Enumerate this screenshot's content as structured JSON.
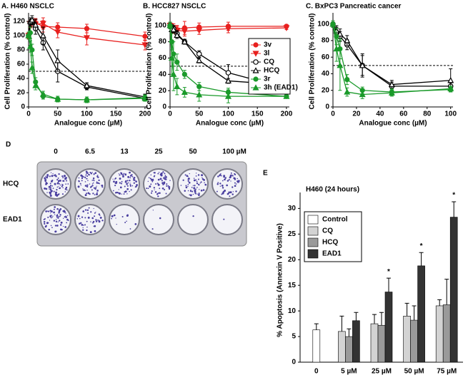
{
  "chart_data": [
    {
      "type": "line",
      "title": "A. H460 NSCLC",
      "x_label": "Analogue conc (µM)",
      "y_label": "Cell Proliferation (% control)",
      "x": [
        0,
        3,
        6,
        12,
        25,
        50,
        100,
        200
      ],
      "xlim": [
        0,
        205
      ],
      "xticks": [
        0,
        50,
        100,
        150,
        200
      ],
      "ylim": [
        0,
        128
      ],
      "yticks": [
        0,
        20,
        40,
        60,
        80,
        100,
        120
      ],
      "reference_line": 50,
      "series": [
        {
          "name": "3v",
          "color": "#e8201f",
          "marker": "circle-filled",
          "values": [
            100,
            118,
            120,
            118,
            113,
            112,
            110,
            99
          ],
          "errors": [
            4,
            5,
            5,
            6,
            8,
            6,
            6,
            6
          ]
        },
        {
          "name": "3l",
          "color": "#e8201f",
          "marker": "triangle-down",
          "values": [
            100,
            116,
            118,
            116,
            117,
            105,
            97,
            87
          ],
          "errors": [
            4,
            5,
            5,
            6,
            8,
            8,
            10,
            7
          ]
        },
        {
          "name": "CQ",
          "color": "#000000",
          "marker": "circle-open",
          "values": [
            100,
            118,
            120,
            110,
            90,
            50,
            28,
            12
          ],
          "errors": [
            5,
            5,
            5,
            8,
            10,
            15,
            4,
            4
          ]
        },
        {
          "name": "HCQ",
          "color": "#000000",
          "marker": "triangle-open",
          "values": [
            100,
            120,
            122,
            115,
            100,
            65,
            30,
            14
          ],
          "errors": [
            5,
            5,
            6,
            8,
            12,
            15,
            4,
            4
          ]
        },
        {
          "name": "3r",
          "color": "#1a9a2a",
          "marker": "circle-filled",
          "values": [
            100,
            104,
            80,
            35,
            15,
            11,
            10,
            13
          ],
          "errors": [
            5,
            8,
            8,
            6,
            4,
            4,
            4,
            4
          ]
        },
        {
          "name": "3h (EAD1)",
          "color": "#1a9a2a",
          "marker": "triangle-filled",
          "values": [
            100,
            85,
            55,
            30,
            18,
            11,
            10,
            12
          ],
          "errors": [
            5,
            8,
            8,
            6,
            4,
            4,
            4,
            4
          ]
        }
      ]
    },
    {
      "type": "line",
      "title": "B. HCC827 NSCLC",
      "x_label": "Analogue conc (µM)",
      "y_label": "Cell Proliferation (% control)",
      "x": [
        0,
        3,
        6,
        12,
        25,
        50,
        100,
        200
      ],
      "xlim": [
        0,
        205
      ],
      "xticks": [
        0,
        50,
        100,
        150,
        200
      ],
      "ylim": [
        0,
        112
      ],
      "yticks": [
        0,
        20,
        40,
        60,
        80,
        100
      ],
      "reference_line": 50,
      "legend": "right",
      "series": [
        {
          "name": "3v",
          "color": "#e8201f",
          "marker": "circle-filled",
          "values": [
            100,
            98,
            97,
            95,
            97,
            98,
            99,
            99
          ],
          "errors": [
            4,
            4,
            5,
            5,
            8,
            5,
            5,
            2
          ]
        },
        {
          "name": "3l",
          "color": "#e8201f",
          "marker": "triangle-down",
          "values": [
            100,
            96,
            95,
            94,
            93,
            94,
            96,
            97
          ],
          "errors": [
            4,
            4,
            5,
            5,
            6,
            5,
            5,
            2
          ]
        },
        {
          "name": "CQ",
          "color": "#000000",
          "marker": "circle-open",
          "values": [
            100,
            97,
            96,
            90,
            80,
            65,
            42,
            23
          ],
          "errors": [
            4,
            4,
            4,
            4,
            3,
            4,
            10,
            2
          ]
        },
        {
          "name": "HCQ",
          "color": "#000000",
          "marker": "triangle-open",
          "values": [
            100,
            95,
            95,
            88,
            80,
            57,
            32,
            27
          ],
          "errors": [
            4,
            4,
            4,
            4,
            3,
            3,
            3,
            2
          ]
        },
        {
          "name": "3r",
          "color": "#1a9a2a",
          "marker": "circle-filled",
          "values": [
            100,
            80,
            65,
            55,
            40,
            25,
            18,
            13
          ],
          "errors": [
            4,
            10,
            15,
            10,
            5,
            5,
            5,
            2
          ]
        },
        {
          "name": "3h (EAD1)",
          "color": "#1a9a2a",
          "marker": "triangle-filled",
          "values": [
            100,
            60,
            40,
            25,
            18,
            15,
            13,
            13
          ],
          "errors": [
            4,
            20,
            20,
            10,
            6,
            8,
            8,
            2
          ]
        }
      ]
    },
    {
      "type": "line",
      "title": "C. BxPC3 Pancreatic cancer",
      "x_label": "Analogue conc (µM)",
      "y_label": "Cell Proliferation (% control)",
      "x": [
        0,
        3,
        6,
        12,
        25,
        50,
        100
      ],
      "xlim": [
        0,
        102
      ],
      "xticks": [
        0,
        20,
        40,
        60,
        80,
        100
      ],
      "ylim": [
        0,
        110
      ],
      "yticks": [
        0,
        20,
        40,
        60,
        80,
        100
      ],
      "reference_line": 50,
      "series": [
        {
          "name": "CQ",
          "color": "#000000",
          "marker": "circle-open",
          "values": [
            100,
            90,
            85,
            75,
            50,
            25,
            25
          ],
          "errors": [
            4,
            6,
            6,
            6,
            12,
            5,
            4
          ]
        },
        {
          "name": "HCQ",
          "color": "#000000",
          "marker": "triangle-open",
          "values": [
            100,
            92,
            88,
            80,
            50,
            27,
            32
          ],
          "errors": [
            4,
            6,
            6,
            6,
            14,
            5,
            14
          ]
        },
        {
          "name": "3r",
          "color": "#1a9a2a",
          "marker": "circle-filled",
          "values": [
            100,
            85,
            70,
            33,
            20,
            18,
            21
          ],
          "errors": [
            4,
            10,
            12,
            6,
            4,
            4,
            3
          ]
        },
        {
          "name": "3h (EAD1)",
          "color": "#1a9a2a",
          "marker": "triangle-filled",
          "values": [
            100,
            70,
            50,
            18,
            15,
            17,
            22
          ],
          "errors": [
            4,
            15,
            30,
            5,
            5,
            4,
            3
          ]
        }
      ]
    },
    {
      "type": "image",
      "panel": "D",
      "column_labels": [
        "0",
        "6.5",
        "13",
        "25",
        "50",
        "100 µM"
      ],
      "row_labels": [
        "HCQ",
        "EAD1"
      ]
    },
    {
      "type": "bar",
      "panel": "E",
      "title": "H460 (24 hours)",
      "y_label": "% Apoptosis (Annexin V Positive)",
      "categories": [
        "0",
        "5 µM",
        "25 µM",
        "50 µM",
        "75 µM"
      ],
      "ylim": [
        0,
        32
      ],
      "yticks": [
        0,
        5,
        10,
        15,
        20,
        25,
        30
      ],
      "series": [
        {
          "name": "Control",
          "color": "#ffffff",
          "values": [
            6.3,
            null,
            null,
            null,
            null
          ],
          "errors": [
            1.2,
            null,
            null,
            null,
            null
          ]
        },
        {
          "name": "CQ",
          "color": "#d3d3d3",
          "values": [
            null,
            6,
            7.5,
            9,
            11
          ],
          "errors": [
            null,
            3,
            1.8,
            2.5,
            1.2
          ]
        },
        {
          "name": "HCQ",
          "color": "#9a9a9a",
          "values": [
            null,
            5,
            7.2,
            8.2,
            11.2
          ],
          "errors": [
            null,
            1.5,
            2.5,
            2.8,
            5
          ]
        },
        {
          "name": "EAD1",
          "color": "#333333",
          "values": [
            null,
            8.1,
            13.7,
            18.8,
            28.3
          ],
          "errors": [
            null,
            1.6,
            2.7,
            2.6,
            3
          ],
          "significance": [
            null,
            null,
            "*",
            "*",
            "*"
          ]
        }
      ]
    }
  ]
}
